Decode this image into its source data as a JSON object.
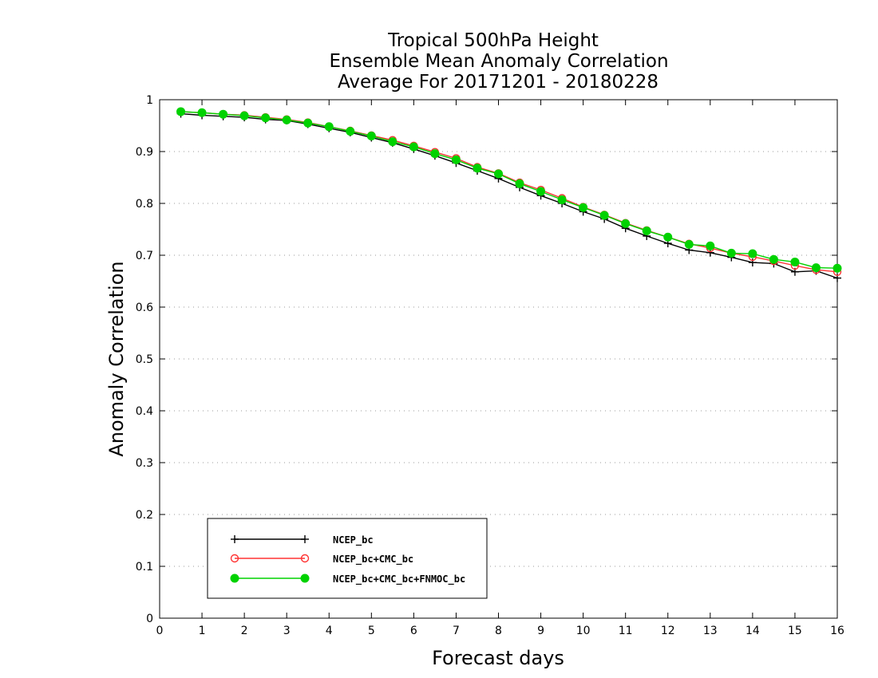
{
  "chart_data": {
    "type": "line",
    "title": [
      "Tropical 500hPa Height",
      "Ensemble Mean Anomaly Correlation",
      "Average For 20171201 - 20180228"
    ],
    "xlabel": "Forecast days",
    "ylabel": "Anomaly Correlation",
    "xlim": [
      0,
      16
    ],
    "ylim": [
      0,
      1
    ],
    "xticks": [
      "0",
      "1",
      "2",
      "3",
      "4",
      "5",
      "6",
      "7",
      "8",
      "9",
      "10",
      "11",
      "12",
      "13",
      "14",
      "15",
      "16"
    ],
    "yticks": [
      "0",
      "0.1",
      "0.2",
      "0.3",
      "0.4",
      "0.5",
      "0.6",
      "0.7",
      "0.8",
      "0.9",
      "1"
    ],
    "grid": true,
    "legend_position": "bottom-left",
    "x": [
      0.5,
      1,
      1.5,
      2,
      2.5,
      3,
      3.5,
      4,
      4.5,
      5,
      5.5,
      6,
      6.5,
      7,
      7.5,
      8,
      8.5,
      9,
      9.5,
      10,
      10.5,
      11,
      11.5,
      12,
      12.5,
      13,
      13.5,
      14,
      14.5,
      15,
      15.5,
      16
    ],
    "series": [
      {
        "name": "NCEP_bc",
        "color": "#000000",
        "marker": "plus",
        "values": [
          0.973,
          0.97,
          0.968,
          0.966,
          0.962,
          0.96,
          0.953,
          0.945,
          0.937,
          0.927,
          0.917,
          0.905,
          0.892,
          0.878,
          0.863,
          0.848,
          0.831,
          0.815,
          0.8,
          0.784,
          0.77,
          0.752,
          0.737,
          0.723,
          0.71,
          0.705,
          0.696,
          0.686,
          0.684,
          0.668,
          0.67,
          0.656
        ]
      },
      {
        "name": "NCEP_bc+CMC_bc",
        "color": "#ff3333",
        "marker": "open-circle",
        "values": [
          0.977,
          0.975,
          0.972,
          0.97,
          0.966,
          0.962,
          0.956,
          0.948,
          0.94,
          0.931,
          0.922,
          0.911,
          0.899,
          0.887,
          0.87,
          0.858,
          0.84,
          0.826,
          0.81,
          0.793,
          0.778,
          0.762,
          0.748,
          0.735,
          0.722,
          0.714,
          0.704,
          0.697,
          0.689,
          0.68,
          0.672,
          0.668
        ]
      },
      {
        "name": "NCEP_bc+CMC_bc+FNMOC_bc",
        "color": "#00d200",
        "marker": "filled-circle",
        "values": [
          0.977,
          0.975,
          0.972,
          0.969,
          0.965,
          0.961,
          0.955,
          0.948,
          0.939,
          0.93,
          0.919,
          0.909,
          0.896,
          0.884,
          0.868,
          0.857,
          0.838,
          0.823,
          0.807,
          0.792,
          0.777,
          0.761,
          0.747,
          0.735,
          0.721,
          0.718,
          0.704,
          0.703,
          0.692,
          0.687,
          0.676,
          0.675
        ]
      }
    ]
  }
}
